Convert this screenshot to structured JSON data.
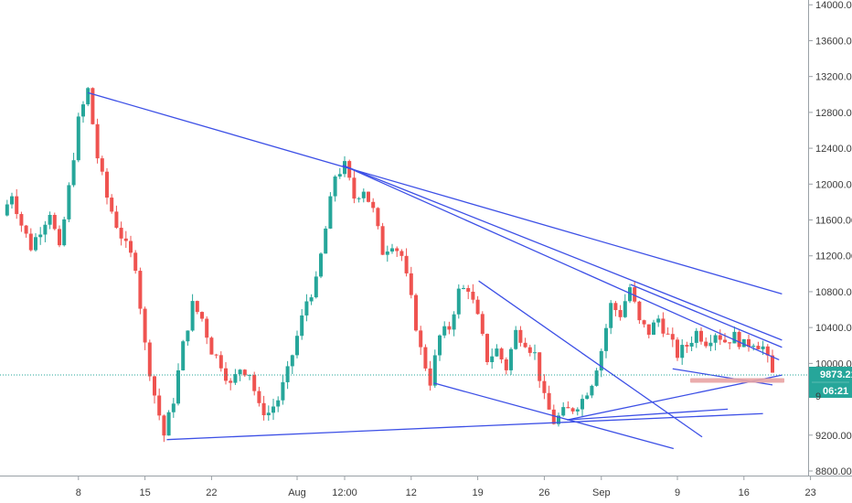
{
  "chart_data": {
    "type": "candlestick",
    "title": "",
    "y_axis": {
      "position": "right",
      "ticks": [
        "14000.00",
        "13600.00",
        "13200.00",
        "12800.00",
        "12400.00",
        "12000.00",
        "11600.00",
        "11200.00",
        "10800.00",
        "10400.00",
        "10000.00",
        "9200.00",
        "8800.00"
      ],
      "tick_values": [
        14000,
        13600,
        13200,
        12800,
        12400,
        12000,
        11600,
        11200,
        10800,
        10400,
        10000,
        9200,
        8800
      ],
      "range": [
        8700,
        14050
      ]
    },
    "x_axis": {
      "ticks": [
        "8",
        "15",
        "22",
        "Aug",
        "12:00",
        "12",
        "19",
        "26",
        "Sep",
        "9",
        "16",
        "23"
      ],
      "tick_index": [
        8,
        15,
        22,
        31,
        36,
        43,
        50,
        57,
        63,
        71,
        78,
        85
      ]
    },
    "current_price": {
      "value": 9873.21,
      "label": "9873.21",
      "countdown": "06:21",
      "partial_label": "9",
      "color": "#26a69a"
    },
    "colors": {
      "up": "#26a69a",
      "down": "#ef5350",
      "trendline": "#3d50e6",
      "marker": "#e8a3a3",
      "axis_bg": "#ffffff"
    },
    "close_path": [
      [
        0,
        11650
      ],
      [
        1,
        11900
      ],
      [
        2,
        11550
      ],
      [
        3,
        11300
      ],
      [
        4,
        11500
      ],
      [
        5,
        11700
      ],
      [
        6,
        11250
      ],
      [
        7,
        11950
      ],
      [
        8,
        12700
      ],
      [
        9,
        13050
      ],
      [
        10,
        12300
      ],
      [
        11,
        11850
      ],
      [
        12,
        11550
      ],
      [
        13,
        11300
      ],
      [
        14,
        11100
      ],
      [
        15,
        10200
      ],
      [
        16,
        9650
      ],
      [
        17,
        9200
      ],
      [
        18,
        9600
      ],
      [
        19,
        10200
      ],
      [
        20,
        10650
      ],
      [
        21,
        10500
      ],
      [
        22,
        10150
      ],
      [
        23,
        10000
      ],
      [
        24,
        9750
      ],
      [
        25,
        9950
      ],
      [
        26,
        9900
      ],
      [
        27,
        9500
      ],
      [
        28,
        9450
      ],
      [
        29,
        9600
      ],
      [
        30,
        9900
      ],
      [
        31,
        10300
      ],
      [
        32,
        10700
      ],
      [
        33,
        10900
      ],
      [
        34,
        11500
      ],
      [
        35,
        12100
      ],
      [
        36,
        12200
      ],
      [
        37,
        11850
      ],
      [
        38,
        11950
      ],
      [
        39,
        11700
      ],
      [
        40,
        11250
      ],
      [
        41,
        11350
      ],
      [
        42,
        11200
      ],
      [
        43,
        10700
      ],
      [
        44,
        10150
      ],
      [
        45,
        9800
      ],
      [
        46,
        10300
      ],
      [
        47,
        10400
      ],
      [
        48,
        10800
      ],
      [
        49,
        10850
      ],
      [
        50,
        10500
      ],
      [
        51,
        10050
      ],
      [
        52,
        10150
      ],
      [
        53,
        9950
      ],
      [
        54,
        10350
      ],
      [
        55,
        10250
      ],
      [
        56,
        10100
      ],
      [
        57,
        9600
      ],
      [
        58,
        9350
      ],
      [
        59,
        9450
      ],
      [
        60,
        9500
      ],
      [
        61,
        9600
      ],
      [
        62,
        9800
      ],
      [
        63,
        10150
      ],
      [
        64,
        10650
      ],
      [
        65,
        10550
      ],
      [
        66,
        10850
      ],
      [
        67,
        10450
      ],
      [
        68,
        10350
      ],
      [
        69,
        10500
      ],
      [
        70,
        10300
      ],
      [
        71,
        10100
      ],
      [
        72,
        10200
      ],
      [
        73,
        10350
      ],
      [
        74,
        10250
      ],
      [
        75,
        10350
      ],
      [
        76,
        10250
      ],
      [
        77,
        10300
      ],
      [
        78,
        10200
      ],
      [
        79,
        10250
      ],
      [
        80,
        10180
      ],
      [
        81,
        9873
      ]
    ],
    "trendlines": [
      {
        "x1": 9,
        "y1": 13020,
        "x2": 82,
        "y2": 10775
      },
      {
        "x1": 35.8,
        "y1": 12210,
        "x2": 81.7,
        "y2": 10040
      },
      {
        "x1": 35.8,
        "y1": 12210,
        "x2": 82,
        "y2": 10260
      },
      {
        "x1": 66.1,
        "y1": 10880,
        "x2": 82,
        "y2": 10180
      },
      {
        "x1": 17.3,
        "y1": 9150,
        "x2": 80,
        "y2": 9440
      },
      {
        "x1": 45.4,
        "y1": 9780,
        "x2": 70.6,
        "y2": 9050
      },
      {
        "x1": 50.1,
        "y1": 10920,
        "x2": 73.6,
        "y2": 9180
      },
      {
        "x1": 59.4,
        "y1": 9370,
        "x2": 82,
        "y2": 9870
      },
      {
        "x1": 59.4,
        "y1": 9370,
        "x2": 76.3,
        "y2": 9490
      },
      {
        "x1": 70.5,
        "y1": 9940,
        "x2": 81,
        "y2": 9760
      }
    ]
  }
}
